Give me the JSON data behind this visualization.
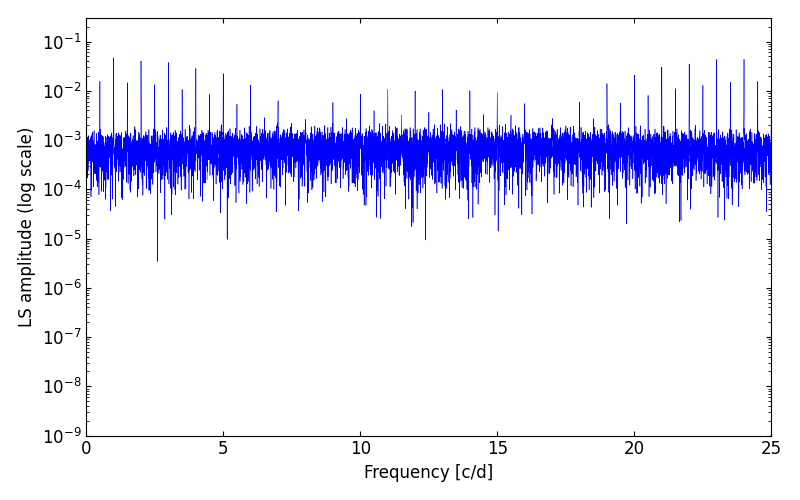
{
  "xlabel": "Frequency [c/d]",
  "ylabel": "LS amplitude (log scale)",
  "xlim": [
    0,
    25
  ],
  "ylim": [
    1e-09,
    0.3
  ],
  "line_color": "#0000ff",
  "line_width": 0.4,
  "freq_min": 0.0,
  "freq_max": 25.0,
  "n_points": 8000,
  "seed": 42,
  "background_color": "#ffffff",
  "figsize": [
    8.0,
    5.0
  ],
  "dpi": 100
}
